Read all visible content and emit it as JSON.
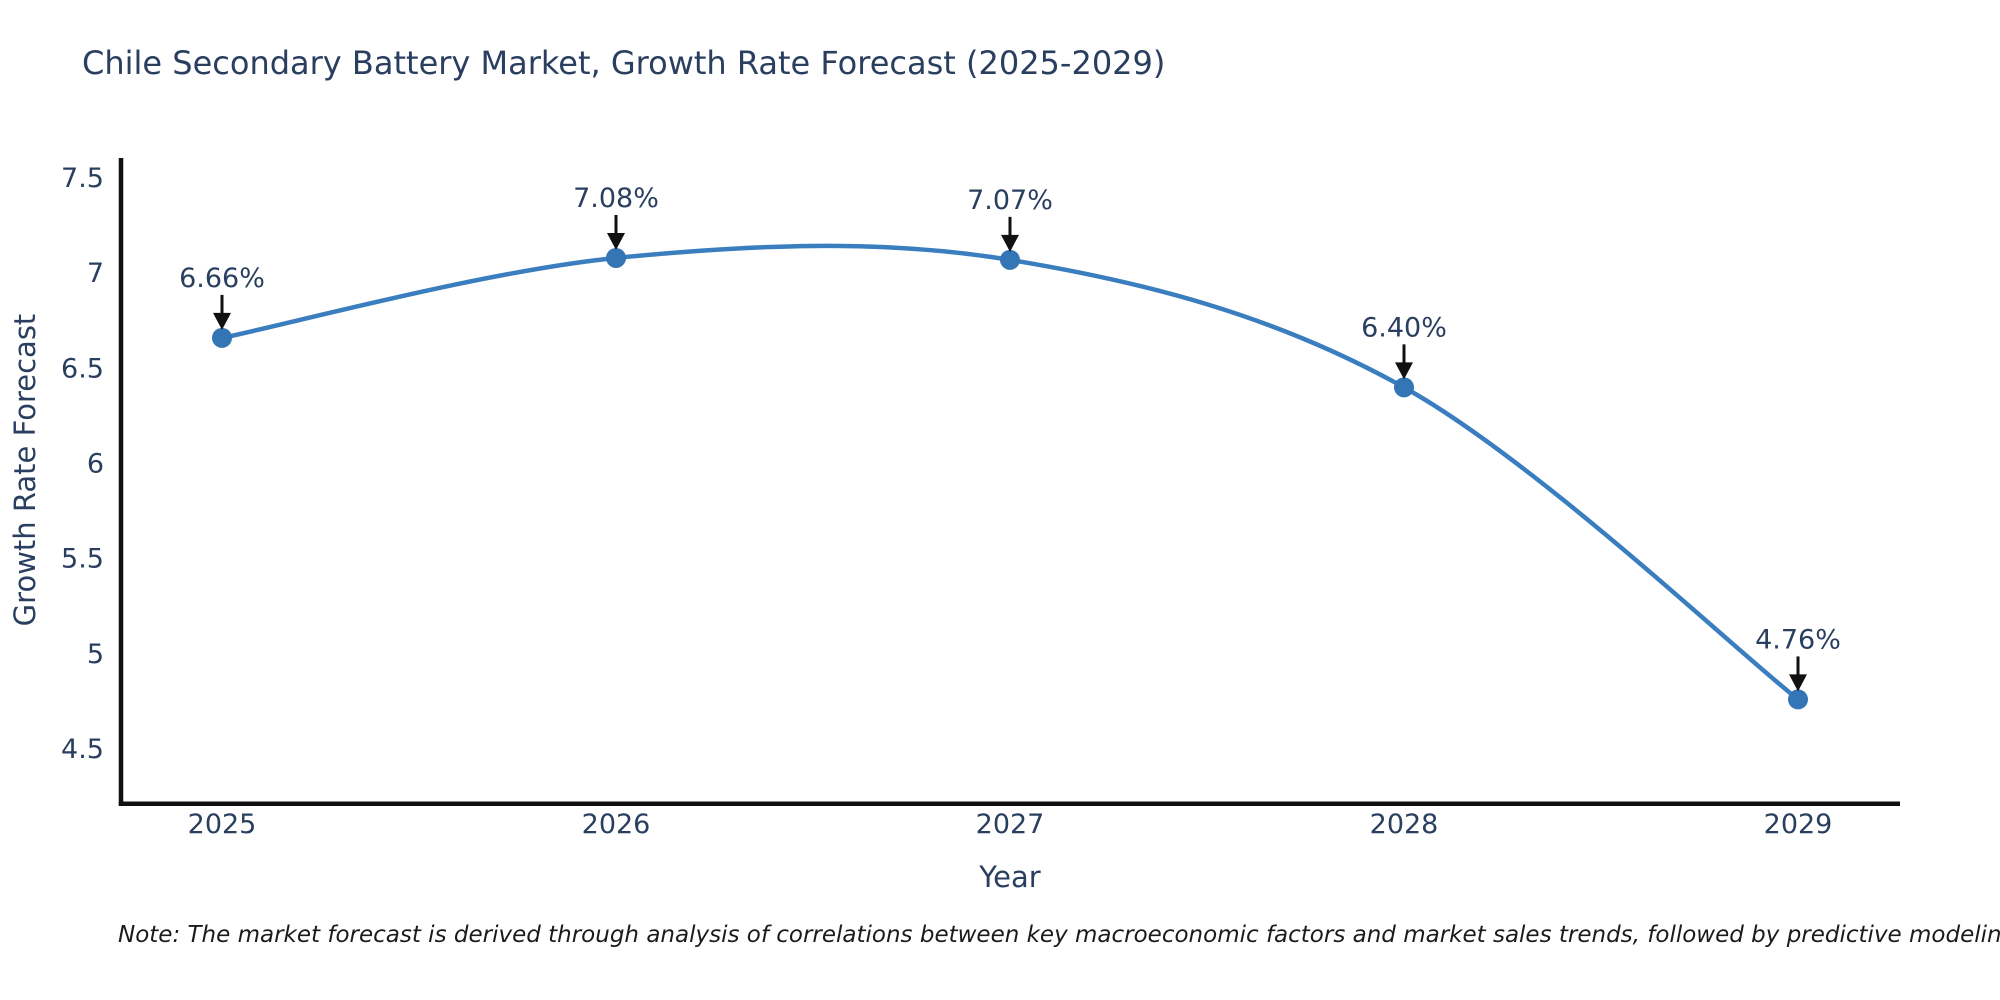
{
  "chart_data": {
    "type": "line",
    "title": "Chile Secondary Battery Market, Growth Rate Forecast (2025-2029)",
    "xlabel": "Year",
    "ylabel": "Growth Rate Forecast",
    "categories": [
      "2025",
      "2026",
      "2027",
      "2028",
      "2029"
    ],
    "series": [
      {
        "name": "Growth Rate Forecast",
        "values": [
          6.66,
          7.08,
          7.07,
          6.4,
          4.76
        ],
        "point_labels": [
          "6.66%",
          "7.08%",
          "7.07%",
          "6.40%",
          "4.76%"
        ]
      }
    ],
    "yticks": [
      4.5,
      5,
      5.5,
      6,
      6.5,
      7,
      7.5
    ],
    "ylim": [
      4.2,
      7.6
    ],
    "grid": false,
    "legend": false,
    "line_smoothing": "spline",
    "colors": {
      "line": "#3a7ebf",
      "marker": "#3375b5",
      "axis": "#111111",
      "text": "#2a3f5f",
      "annotation_arrow": "#111111",
      "note_text": "#1b1b1b",
      "background": "#ffffff"
    },
    "note": "Note: The market forecast is derived through analysis of correlations between key macroeconomic factors and market sales trends, followed by predictive modeling to project future sales"
  }
}
